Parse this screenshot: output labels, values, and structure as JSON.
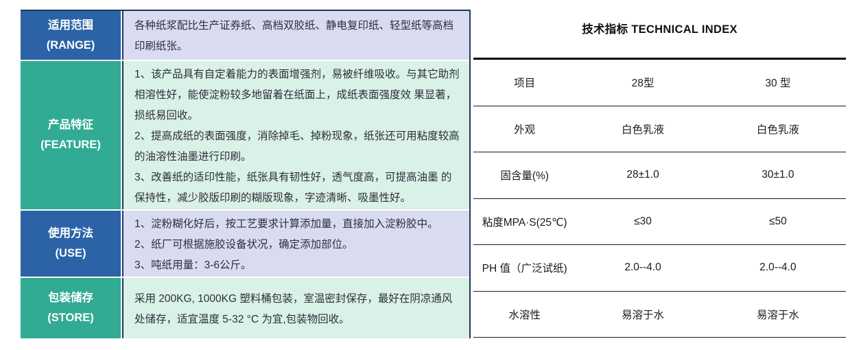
{
  "left_table": {
    "rows": [
      {
        "key": "range",
        "label_zh": "适用范围",
        "label_en": "(RANGE)",
        "label_color": "blue",
        "content_color": "lavender",
        "paragraphs": [
          "各种纸浆配比生产证券纸、高档双胶纸、静电复印纸、轻型纸等高档印刷纸张。"
        ]
      },
      {
        "key": "feature",
        "label_zh": "产品特征",
        "label_en": "(FEATURE)",
        "label_color": "teal",
        "content_color": "mint",
        "paragraphs": [
          "1、该产品具有自定着能力的表面增强剂，易被纤维吸收。与其它助剂相溶性好，能使淀粉较多地留着在纸面上，成纸表面强度效 果显著，损纸易回收。",
          "2、提高成纸的表面强度，消除掉毛、掉粉现象，纸张还可用粘度较高的油溶性油墨进行印刷。",
          "3、改善纸的适印性能，纸张具有韧性好，透气度高，可提高油墨 的保持性，减少胶版印刷的糊版现象，字迹清晰、吸墨性好。"
        ]
      },
      {
        "key": "use",
        "label_zh": "使用方法",
        "label_en": "(USE)",
        "label_color": "blue",
        "content_color": "lavender",
        "paragraphs": [
          "1、淀粉糊化好后，按工艺要求计算添加量，直接加入淀粉胶中。",
          "2、纸厂可根据施胶设备状况，确定添加部位。",
          "3、吨纸用量：3-6公斤。"
        ]
      },
      {
        "key": "store",
        "label_zh": "包装储存",
        "label_en": "(STORE)",
        "label_color": "teal",
        "content_color": "mint",
        "paragraphs": [
          "采用 200KG, 1000KG 塑料桶包装，室温密封保存，最好在阴凉通风处储存，适宜温度 5-32 °C 为宜,包装物回收。"
        ]
      }
    ]
  },
  "right_table": {
    "title": "技术指标 TECHNICAL INDEX",
    "headers": [
      "项目",
      "28型",
      "30 型"
    ],
    "rows": [
      [
        "外观",
        "白色乳液",
        "白色乳液"
      ],
      [
        "固含量(%)",
        "28±1.0",
        "30±1.0"
      ],
      [
        "粘度MPA·S(25℃)",
        "≤30",
        "≤50"
      ],
      [
        "PH 值（广泛试纸)",
        "2.0--4.0",
        "2.0--4.0"
      ],
      [
        "水溶性",
        "易溶于水",
        "易溶于水"
      ]
    ]
  },
  "colors": {
    "label_blue": "#2b63a6",
    "label_teal": "#31ab93",
    "content_lavender": "#d9dcf0",
    "content_mint": "#d9f1e6",
    "separator_navy": "#1f3864",
    "table_line_black": "#000000"
  }
}
